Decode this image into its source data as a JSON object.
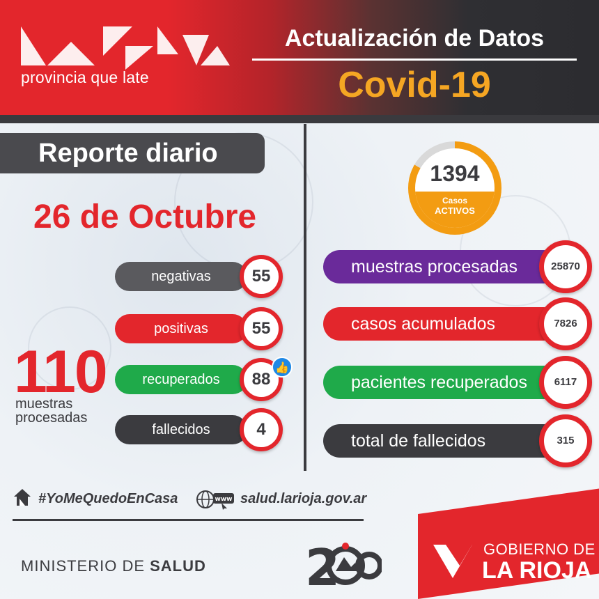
{
  "header": {
    "logo_text": "provincia que late",
    "title": "Actualización de Datos",
    "subtitle": "Covid-19"
  },
  "report": {
    "heading": "Reporte diario",
    "date": "26 de Octubre",
    "daily_total": "110",
    "daily_total_label_1": "muestras",
    "daily_total_label_2": "procesadas",
    "items": [
      {
        "label": "negativas",
        "value": "55",
        "color": "#5a5a5e"
      },
      {
        "label": "positivas",
        "value": "55",
        "color": "#e3262c"
      },
      {
        "label": "recuperados",
        "value": "88",
        "color": "#1faa4a"
      },
      {
        "label": "fallecidos",
        "value": "4",
        "color": "#3b3b3f"
      }
    ]
  },
  "totals": {
    "active_value": "1394",
    "active_label_1": "Casos",
    "active_label_2": "ACTIVOS",
    "items": [
      {
        "label": "muestras procesadas",
        "value": "25870",
        "color": "#6a2a9a"
      },
      {
        "label": "casos acumulados",
        "value": "7826",
        "color": "#e3262c"
      },
      {
        "label": "pacientes recuperados",
        "value": "6117",
        "color": "#1faa4a"
      },
      {
        "label": "total de fallecidos",
        "value": "315",
        "color": "#3b3b3f"
      }
    ]
  },
  "footer": {
    "hashtag": "#YoMeQuedoEnCasa",
    "website": "salud.larioja.gov.ar",
    "www_icon_text": "www",
    "ministry_prefix": "MINISTERIO DE ",
    "ministry_bold": "SALUD",
    "government_line1": "GOBIERNO DE",
    "government_line2": "LA RIOJA",
    "emblem_text": "200"
  }
}
